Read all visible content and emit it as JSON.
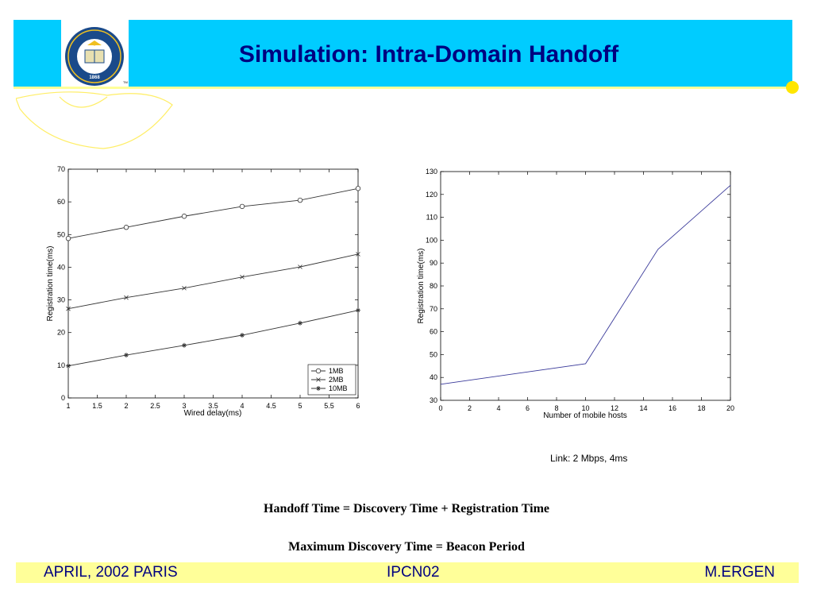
{
  "slide": {
    "title": "Simulation: Intra-Domain Handoff",
    "logo_text_top": "THE UNIVERSITY OF CALIFORNIA BERKELEY",
    "logo_year": "1868",
    "logo_tm": "TM"
  },
  "note": "Link: 2 Mbps, 4ms",
  "equations": {
    "line1": "Handoff Time = Discovery Time + Registration Time",
    "line2": "Maximum Discovery Time = Beacon Period"
  },
  "footer": {
    "left": "APRIL, 2002 PARIS",
    "center": "IPCN02",
    "right": "M.ERGEN"
  },
  "colors": {
    "title_bar": "#00ccff",
    "title_text": "#000080",
    "footer_bg": "#ffff99",
    "accent_dot": "#ffe600",
    "series_right": "#3a3a9a"
  },
  "chart_data": [
    {
      "type": "line",
      "xlabel": "Wired delay(ms)",
      "ylabel": "Registration time(ms)",
      "xlim": [
        1,
        6
      ],
      "ylim": [
        0,
        70
      ],
      "xticks": [
        "1",
        "1.5",
        "2",
        "2.5",
        "3",
        "3.5",
        "4",
        "4.5",
        "5",
        "5.5",
        "6"
      ],
      "yticks": [
        "0",
        "10",
        "20",
        "30",
        "40",
        "50",
        "60",
        "70"
      ],
      "x": [
        1,
        2,
        3,
        4,
        5,
        6
      ],
      "grid": false,
      "legend": "bottom-right",
      "series": [
        {
          "name": "1MB",
          "marker": "circle",
          "values": [
            48.8,
            52.2,
            55.6,
            58.6,
            60.5,
            64.1
          ]
        },
        {
          "name": "2MB",
          "marker": "x",
          "values": [
            27.3,
            30.7,
            33.6,
            37.0,
            40.1,
            44.0
          ]
        },
        {
          "name": "10MB",
          "marker": "star",
          "values": [
            9.8,
            13.1,
            16.1,
            19.2,
            22.9,
            26.8
          ]
        }
      ]
    },
    {
      "type": "line",
      "xlabel": "Number of mobile hosts",
      "ylabel": "Registration time(ms)",
      "xlim": [
        0,
        20
      ],
      "ylim": [
        30,
        130
      ],
      "xticks": [
        "0",
        "2",
        "4",
        "6",
        "8",
        "10",
        "12",
        "14",
        "16",
        "18",
        "20"
      ],
      "yticks": [
        "30",
        "40",
        "50",
        "60",
        "70",
        "80",
        "90",
        "100",
        "110",
        "120",
        "130"
      ],
      "grid": false,
      "series": [
        {
          "x": [
            0,
            10,
            15,
            20
          ],
          "values": [
            37,
            46,
            96,
            124
          ]
        }
      ]
    }
  ]
}
